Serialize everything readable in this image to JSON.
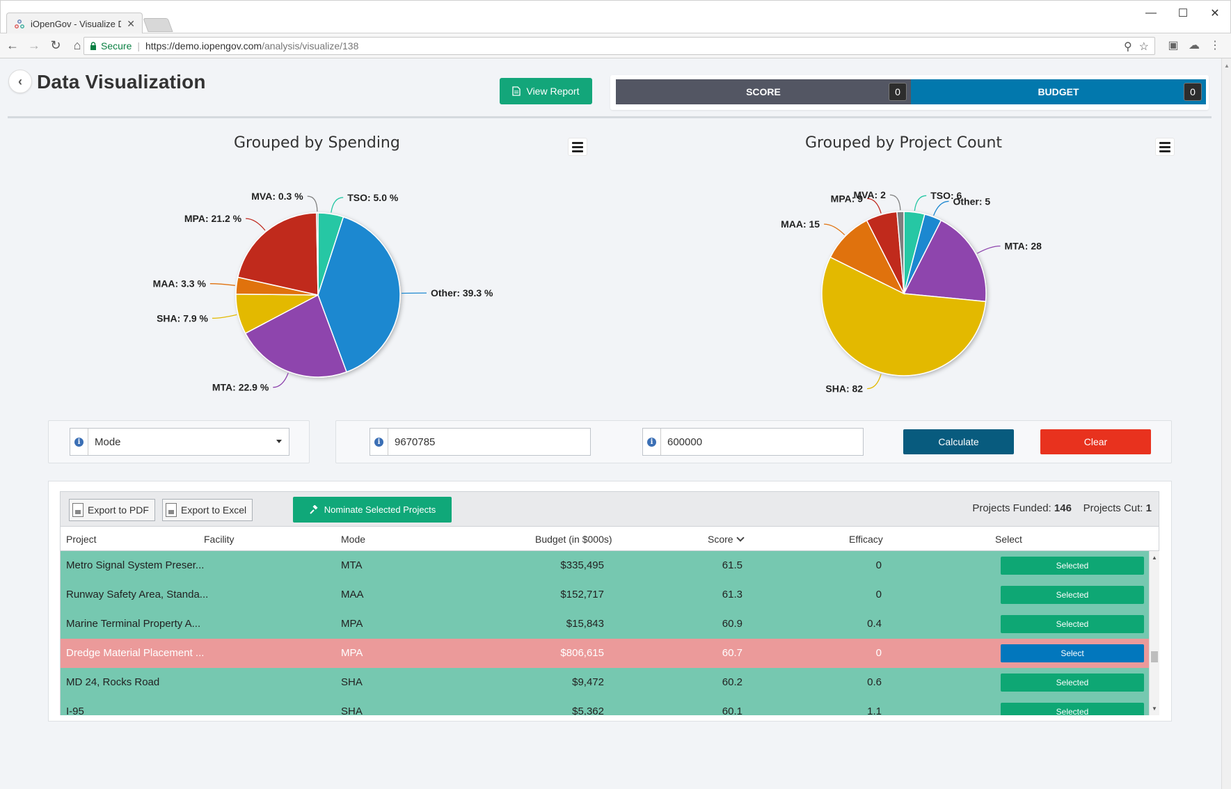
{
  "browser": {
    "tab_title": "iOpenGov - Visualize Dat",
    "secure_label": "Secure",
    "url_host": "https://demo.iopengov.com",
    "url_path": "/analysis/visualize/138"
  },
  "header": {
    "title": "Data Visualization",
    "view_report_label": "View Report",
    "score_label": "SCORE",
    "score_value": "0",
    "budget_label": "BUDGET",
    "budget_value": "0"
  },
  "controls": {
    "mode_value": "Mode",
    "budget_input_value": "9670785",
    "second_input_value": "600000",
    "calculate_label": "Calculate",
    "clear_label": "Clear"
  },
  "grid": {
    "export_pdf_label": "Export to PDF",
    "export_excel_label": "Export to Excel",
    "nominate_label": "Nominate Selected Projects",
    "funded_label": "Projects Funded:",
    "funded_value": "146",
    "cut_label": "Projects Cut:",
    "cut_value": "1",
    "columns": [
      "Project",
      "Facility",
      "Mode",
      "Budget (in $000s)",
      "Score",
      "Efficacy",
      "Select"
    ],
    "rows": [
      {
        "project": "Metro Signal System Preser...",
        "facility": "",
        "mode": "MTA",
        "budget": "$335,495",
        "score": "61.5",
        "efficacy": "0",
        "select": "Selected",
        "status": "funded"
      },
      {
        "project": "Runway Safety Area, Standa...",
        "facility": "",
        "mode": "MAA",
        "budget": "$152,717",
        "score": "61.3",
        "efficacy": "0",
        "select": "Selected",
        "status": "funded"
      },
      {
        "project": "Marine Terminal Property A...",
        "facility": "",
        "mode": "MPA",
        "budget": "$15,843",
        "score": "60.9",
        "efficacy": "0.4",
        "select": "Selected",
        "status": "funded"
      },
      {
        "project": "Dredge Material Placement ...",
        "facility": "",
        "mode": "MPA",
        "budget": "$806,615",
        "score": "60.7",
        "efficacy": "0",
        "select": "Select",
        "status": "cut"
      },
      {
        "project": "MD 24, Rocks Road",
        "facility": "",
        "mode": "SHA",
        "budget": "$9,472",
        "score": "60.2",
        "efficacy": "0.6",
        "select": "Selected",
        "status": "funded"
      },
      {
        "project": "I-95",
        "facility": "",
        "mode": "SHA",
        "budget": "$5,362",
        "score": "60.1",
        "efficacy": "1.1",
        "select": "Selected",
        "status": "funded"
      }
    ]
  },
  "colors": {
    "funded_row": "#76c8b0",
    "cut_row": "#eb9a9a",
    "selected_button": "#0ea774",
    "select_button": "#0277bd",
    "calculate": "#085b7e",
    "clear": "#e8321e"
  },
  "icons": [
    "back-icon",
    "document-icon",
    "menu-icon",
    "info-icon",
    "caret-down-icon",
    "pdf-icon",
    "excel-icon",
    "gavel-icon",
    "sort-down-icon"
  ],
  "chart_data": [
    {
      "type": "pie",
      "title": "Grouped by Spending",
      "label_suffix": " %",
      "slices": [
        {
          "name": "TSO",
          "value": 5.0,
          "label": "TSO: 5.0 %",
          "color": "#26c7a4"
        },
        {
          "name": "Other",
          "value": 39.3,
          "label": "Other: 39.3 %",
          "color": "#1e88d0"
        },
        {
          "name": "MTA",
          "value": 22.9,
          "label": "MTA: 22.9 %",
          "color": "#8e44ad"
        },
        {
          "name": "SHA",
          "value": 7.9,
          "label": "SHA: 7.9 %",
          "color": "#e3b900"
        },
        {
          "name": "MAA",
          "value": 3.3,
          "label": "MAA: 3.3 %",
          "color": "#e0720f"
        },
        {
          "name": "MPA",
          "value": 21.2,
          "label": "MPA: 21.2 %",
          "color": "#c0291f"
        },
        {
          "name": "MVA",
          "value": 0.3,
          "label": "MVA: 0.3 %",
          "color": "#7f7f7f"
        }
      ]
    },
    {
      "type": "pie",
      "title": "Grouped by Project Count",
      "slices": [
        {
          "name": "TSO",
          "value": 6,
          "label": "TSO: 6",
          "color": "#26c7a4"
        },
        {
          "name": "Other",
          "value": 5,
          "label": "Other: 5",
          "color": "#1e88d0"
        },
        {
          "name": "MTA",
          "value": 28,
          "label": "MTA: 28",
          "color": "#8e44ad"
        },
        {
          "name": "SHA",
          "value": 82,
          "label": "SHA: 82",
          "color": "#e3b900"
        },
        {
          "name": "MAA",
          "value": 15,
          "label": "MAA: 15",
          "color": "#e0720f"
        },
        {
          "name": "MPA",
          "value": 9,
          "label": "MPA: 9",
          "color": "#c0291f"
        },
        {
          "name": "MVA",
          "value": 2,
          "label": "MVA: 2",
          "color": "#7f7f7f"
        }
      ]
    }
  ]
}
